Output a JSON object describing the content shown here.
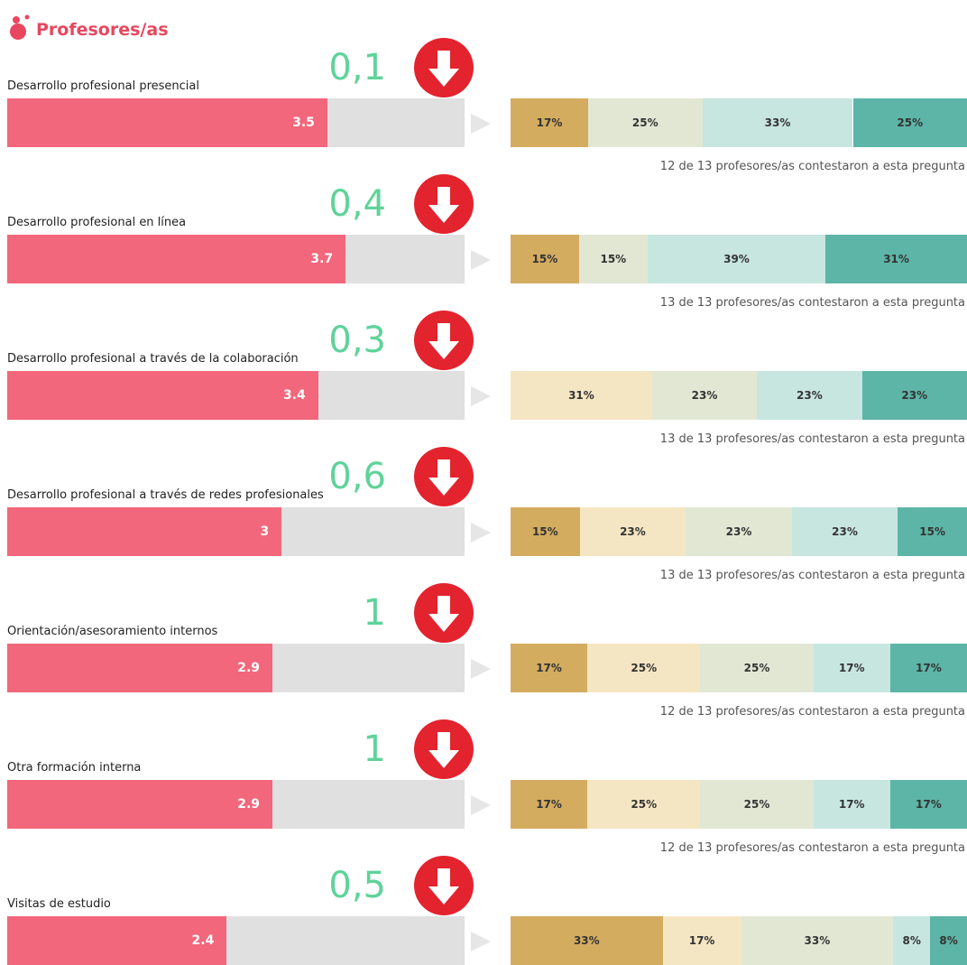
{
  "header": {
    "title": "Profesores/as"
  },
  "xlim": [
    0,
    5
  ],
  "bar_color": "#f2677b",
  "track_color": "#e0e0e0",
  "diff_color": "#5fd39a",
  "items": [
    {
      "label": "Desarrollo profesional presencial",
      "score": 3.5,
      "diff": "0,1",
      "note": "12 de 13 profesores/as contestaron a esta pregunta",
      "segments": [
        {
          "color": "#d4ac60",
          "value": 17,
          "value_label": "17%"
        },
        {
          "color": "#e2e7d4",
          "value": 25,
          "value_label": "25%"
        },
        {
          "color": "#c8e6e0",
          "value": 33,
          "value_label": "33%"
        },
        {
          "color": "#5db5a7",
          "value": 25,
          "value_label": "25%"
        }
      ]
    },
    {
      "label": "Desarrollo profesional en línea",
      "score": 3.7,
      "diff": "0,4",
      "note": "13 de 13 profesores/as contestaron a esta pregunta",
      "segments": [
        {
          "color": "#d4ac60",
          "value": 15,
          "value_label": "15%"
        },
        {
          "color": "#e2e7d4",
          "value": 15,
          "value_label": "15%"
        },
        {
          "color": "#c8e6e0",
          "value": 39,
          "value_label": "39%"
        },
        {
          "color": "#5db5a7",
          "value": 31,
          "value_label": "31%"
        }
      ]
    },
    {
      "label": "Desarrollo profesional a través de la colaboración",
      "score": 3.4,
      "diff": "0,3",
      "note": "13 de 13 profesores/as contestaron a esta pregunta",
      "segments": [
        {
          "color": "#f5e6c3",
          "value": 31,
          "value_label": "31%"
        },
        {
          "color": "#e2e7d4",
          "value": 23,
          "value_label": "23%"
        },
        {
          "color": "#c8e6e0",
          "value": 23,
          "value_label": "23%"
        },
        {
          "color": "#5db5a7",
          "value": 23,
          "value_label": "23%"
        }
      ]
    },
    {
      "label": "Desarrollo profesional a través de redes profesionales",
      "score": 3,
      "diff": "0,6",
      "note": "13 de 13 profesores/as contestaron a esta pregunta",
      "segments": [
        {
          "color": "#d4ac60",
          "value": 15,
          "value_label": "15%"
        },
        {
          "color": "#f5e6c3",
          "value": 23,
          "value_label": "23%"
        },
        {
          "color": "#e2e7d4",
          "value": 23,
          "value_label": "23%"
        },
        {
          "color": "#c8e6e0",
          "value": 23,
          "value_label": "23%"
        },
        {
          "color": "#5db5a7",
          "value": 15,
          "value_label": "15%"
        }
      ]
    },
    {
      "label": "Orientación/asesoramiento internos",
      "score": 2.9,
      "diff": "1",
      "note": "12 de 13 profesores/as contestaron a esta pregunta",
      "segments": [
        {
          "color": "#d4ac60",
          "value": 17,
          "value_label": "17%"
        },
        {
          "color": "#f5e6c3",
          "value": 25,
          "value_label": "25%"
        },
        {
          "color": "#e2e7d4",
          "value": 25,
          "value_label": "25%"
        },
        {
          "color": "#c8e6e0",
          "value": 17,
          "value_label": "17%"
        },
        {
          "color": "#5db5a7",
          "value": 17,
          "value_label": "17%"
        }
      ]
    },
    {
      "label": "Otra formación interna",
      "score": 2.9,
      "diff": "1",
      "note": "12 de 13 profesores/as contestaron a esta pregunta",
      "segments": [
        {
          "color": "#d4ac60",
          "value": 17,
          "value_label": "17%"
        },
        {
          "color": "#f5e6c3",
          "value": 25,
          "value_label": "25%"
        },
        {
          "color": "#e2e7d4",
          "value": 25,
          "value_label": "25%"
        },
        {
          "color": "#c8e6e0",
          "value": 17,
          "value_label": "17%"
        },
        {
          "color": "#5db5a7",
          "value": 17,
          "value_label": "17%"
        }
      ]
    },
    {
      "label": "Visitas de estudio",
      "score": 2.4,
      "diff": "0,5",
      "segments": [
        {
          "color": "#d4ac60",
          "value": 33,
          "value_label": "33%"
        },
        {
          "color": "#f5e6c3",
          "value": 17,
          "value_label": "17%"
        },
        {
          "color": "#e2e7d4",
          "value": 33,
          "value_label": "33%"
        },
        {
          "color": "#c8e6e0",
          "value": 8,
          "value_label": "8%"
        },
        {
          "color": "#5db5a7",
          "value": 8,
          "value_label": "8%"
        }
      ]
    }
  ]
}
